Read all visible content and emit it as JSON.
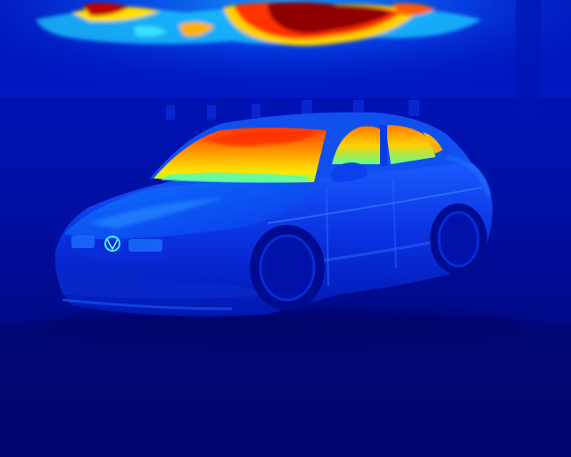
{
  "image": {
    "kind": "thermal-photograph",
    "subject": "sedan-car",
    "palette": {
      "background_deep": "#00087a",
      "background": "#0010a8",
      "cool": "#0030e0",
      "cool_light": "#1a6cff",
      "mid": "#1fc8ff",
      "warm": "#ffe000",
      "hot": "#ff6a00",
      "hottest": "#8a0000"
    }
  }
}
